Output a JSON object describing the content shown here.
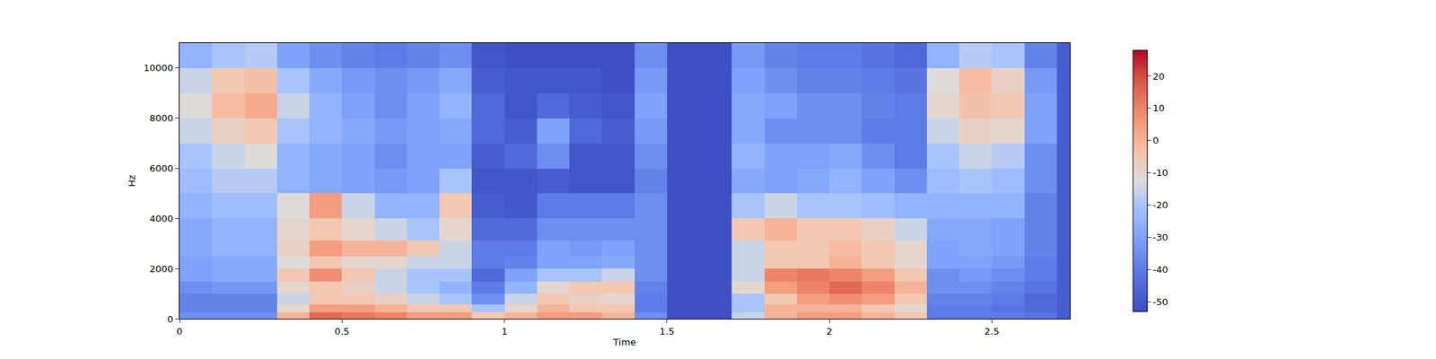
{
  "chart_data": {
    "type": "heatmap",
    "xlabel": "Time",
    "ylabel": "Hz",
    "x": [
      0.05,
      0.15,
      0.25,
      0.35,
      0.45,
      0.55,
      0.65,
      0.75,
      0.85,
      0.95,
      1.05,
      1.15,
      1.25,
      1.35,
      1.45,
      1.55,
      1.65,
      1.75,
      1.85,
      1.95,
      2.05,
      2.15,
      2.25,
      2.35,
      2.45,
      2.55,
      2.65,
      2.75
    ],
    "y": [
      125,
      375,
      750,
      1250,
      1750,
      2250,
      2750,
      3500,
      4500,
      5500,
      6500,
      7500,
      8500,
      9500,
      10500
    ],
    "cells": [
      [
        -35,
        -35,
        -35,
        0,
        15,
        12,
        10,
        5,
        5,
        -5,
        0,
        5,
        5,
        0,
        -35,
        -52,
        -52,
        -15,
        0,
        5,
        5,
        0,
        -5,
        -40,
        -40,
        -40,
        -42,
        -48
      ],
      [
        -38,
        -38,
        -38,
        -10,
        5,
        5,
        0,
        -5,
        -5,
        -20,
        -10,
        0,
        -5,
        -5,
        -40,
        -52,
        -52,
        -20,
        0,
        0,
        0,
        -5,
        -10,
        -40,
        -40,
        -42,
        -45,
        -48
      ],
      [
        -38,
        -38,
        -38,
        -15,
        -5,
        -5,
        -8,
        -15,
        -20,
        -35,
        -15,
        -5,
        -8,
        -10,
        -40,
        -52,
        -52,
        -20,
        -5,
        5,
        8,
        5,
        -5,
        -38,
        -38,
        -40,
        -45,
        -48
      ],
      [
        -35,
        -33,
        -33,
        -10,
        -5,
        -8,
        -15,
        -20,
        -25,
        -40,
        -25,
        -10,
        -5,
        -5,
        -38,
        -52,
        -52,
        -10,
        5,
        10,
        15,
        10,
        0,
        -35,
        -35,
        -38,
        -42,
        -48
      ],
      [
        -30,
        -28,
        -28,
        -5,
        8,
        -5,
        -15,
        -20,
        -20,
        -45,
        -30,
        -20,
        -20,
        -15,
        -35,
        -52,
        -52,
        -15,
        10,
        12,
        10,
        5,
        -5,
        -35,
        -32,
        -35,
        -40,
        -48
      ],
      [
        -30,
        -28,
        -28,
        -12,
        -5,
        -10,
        -10,
        -15,
        -15,
        -40,
        -38,
        -30,
        -30,
        -28,
        -35,
        -52,
        -52,
        -15,
        -5,
        -5,
        0,
        -5,
        -10,
        -30,
        -30,
        -32,
        -40,
        -48
      ],
      [
        -28,
        -25,
        -25,
        -8,
        5,
        0,
        0,
        -5,
        -15,
        -40,
        -40,
        -30,
        -32,
        -30,
        -35,
        -52,
        -52,
        -15,
        -5,
        -5,
        -2,
        -5,
        -10,
        -30,
        -28,
        -30,
        -38,
        -48
      ],
      [
        -28,
        -25,
        -25,
        -10,
        -5,
        -10,
        -15,
        -20,
        -10,
        -45,
        -45,
        -35,
        -35,
        -35,
        -35,
        -52,
        -52,
        -5,
        0,
        -5,
        -5,
        -8,
        -15,
        -28,
        -28,
        -30,
        -38,
        -48
      ],
      [
        -25,
        -22,
        -22,
        -12,
        5,
        -15,
        -25,
        -25,
        -5,
        -48,
        -50,
        -40,
        -40,
        -40,
        -35,
        -52,
        -52,
        -20,
        -15,
        -20,
        -20,
        -22,
        -25,
        -25,
        -25,
        -25,
        -38,
        -48
      ],
      [
        -22,
        -18,
        -18,
        -25,
        -28,
        -30,
        -32,
        -30,
        -20,
        -50,
        -50,
        -48,
        -50,
        -50,
        -38,
        -52,
        -52,
        -28,
        -30,
        -28,
        -25,
        -30,
        -35,
        -22,
        -20,
        -22,
        -35,
        -48
      ],
      [
        -20,
        -15,
        -12,
        -25,
        -28,
        -30,
        -35,
        -30,
        -30,
        -48,
        -45,
        -35,
        -50,
        -50,
        -35,
        -52,
        -52,
        -25,
        -30,
        -30,
        -28,
        -35,
        -40,
        -20,
        -15,
        -18,
        -35,
        -48
      ],
      [
        -15,
        -8,
        -5,
        -20,
        -25,
        -28,
        -32,
        -30,
        -28,
        -45,
        -48,
        -30,
        -45,
        -48,
        -32,
        -52,
        -52,
        -28,
        -35,
        -35,
        -35,
        -40,
        -40,
        -15,
        -8,
        -10,
        -30,
        -48
      ],
      [
        -12,
        -2,
        2,
        -15,
        -25,
        -30,
        -35,
        -30,
        -25,
        -45,
        -50,
        -45,
        -48,
        -50,
        -30,
        -52,
        -52,
        -28,
        -30,
        -35,
        -35,
        -38,
        -40,
        -10,
        -3,
        -5,
        -30,
        -48
      ],
      [
        -15,
        -5,
        -3,
        -20,
        -28,
        -32,
        -35,
        -32,
        -28,
        -48,
        -50,
        -50,
        -50,
        -52,
        -32,
        -52,
        -52,
        -30,
        -35,
        -38,
        -38,
        -40,
        -42,
        -12,
        -2,
        -8,
        -32,
        -48
      ],
      [
        -25,
        -20,
        -18,
        -30,
        -35,
        -38,
        -40,
        -38,
        -35,
        -50,
        -52,
        -52,
        -52,
        -52,
        -35,
        -52,
        -52,
        -32,
        -38,
        -40,
        -40,
        -42,
        -45,
        -25,
        -18,
        -20,
        -38,
        -48
      ]
    ],
    "xlim": [
      0,
      2.74
    ],
    "xticks": [
      0,
      0.5,
      1,
      1.5,
      2,
      2.5
    ],
    "ylim": [
      0,
      11000
    ],
    "yticks": [
      0,
      2000,
      4000,
      6000,
      8000,
      10000
    ],
    "colorbar": {
      "range": [
        -53,
        28
      ],
      "ticks": [
        -50,
        -40,
        -30,
        -20,
        -10,
        0,
        10,
        20
      ]
    }
  }
}
